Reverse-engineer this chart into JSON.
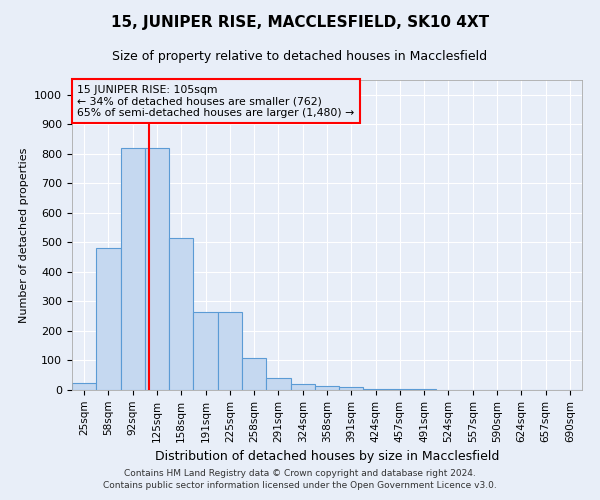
{
  "title": "15, JUNIPER RISE, MACCLESFIELD, SK10 4XT",
  "subtitle": "Size of property relative to detached houses in Macclesfield",
  "xlabel": "Distribution of detached houses by size in Macclesfield",
  "ylabel": "Number of detached properties",
  "bar_labels": [
    "25sqm",
    "58sqm",
    "92sqm",
    "125sqm",
    "158sqm",
    "191sqm",
    "225sqm",
    "258sqm",
    "291sqm",
    "324sqm",
    "358sqm",
    "391sqm",
    "424sqm",
    "457sqm",
    "491sqm",
    "524sqm",
    "557sqm",
    "590sqm",
    "624sqm",
    "657sqm",
    "690sqm"
  ],
  "bar_values": [
    25,
    480,
    820,
    820,
    515,
    265,
    265,
    110,
    40,
    20,
    15,
    10,
    5,
    2,
    2,
    1,
    1,
    0,
    0,
    0,
    0
  ],
  "bar_color": "#c5d8f0",
  "bar_edge_color": "#5b9bd5",
  "ylim": [
    0,
    1050
  ],
  "yticks": [
    0,
    100,
    200,
    300,
    400,
    500,
    600,
    700,
    800,
    900,
    1000
  ],
  "red_line_x": 2.65,
  "annotation_title": "15 JUNIPER RISE: 105sqm",
  "annotation_line1": "← 34% of detached houses are smaller (762)",
  "annotation_line2": "65% of semi-detached houses are larger (1,480) →",
  "footer_line1": "Contains HM Land Registry data © Crown copyright and database right 2024.",
  "footer_line2": "Contains public sector information licensed under the Open Government Licence v3.0.",
  "bg_color": "#e8eef8",
  "grid_color": "#ffffff",
  "title_fontsize": 11,
  "subtitle_fontsize": 9,
  "tick_fontsize": 7.5,
  "ylabel_fontsize": 8,
  "xlabel_fontsize": 9
}
